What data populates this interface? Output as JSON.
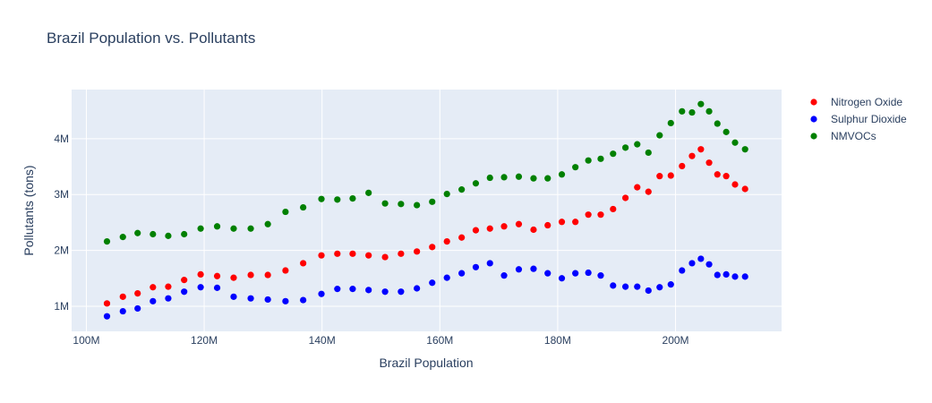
{
  "chart_data": {
    "type": "scatter",
    "title": "Brazil Population vs. Pollutants",
    "xlabel": "Brazil Population",
    "ylabel": "Pollutants (tons)",
    "xlim": [
      97500000,
      218000000
    ],
    "ylim": [
      550000,
      4880000
    ],
    "x_ticks": [
      {
        "value": 100000000,
        "label": "100M"
      },
      {
        "value": 120000000,
        "label": "120M"
      },
      {
        "value": 140000000,
        "label": "140M"
      },
      {
        "value": 160000000,
        "label": "160M"
      },
      {
        "value": 180000000,
        "label": "180M"
      },
      {
        "value": 200000000,
        "label": "200M"
      }
    ],
    "y_ticks": [
      {
        "value": 1000000,
        "label": "1M"
      },
      {
        "value": 2000000,
        "label": "2M"
      },
      {
        "value": 3000000,
        "label": "3M"
      },
      {
        "value": 4000000,
        "label": "4M"
      }
    ],
    "grid": true,
    "legend_position": "top-right",
    "x": [
      103500000,
      106200000,
      108700000,
      111300000,
      113900000,
      116600000,
      119400000,
      122200000,
      125000000,
      127900000,
      130800000,
      133800000,
      136800000,
      139900000,
      142600000,
      145200000,
      147900000,
      150700000,
      153400000,
      156100000,
      158700000,
      161200000,
      163700000,
      166100000,
      168500000,
      170900000,
      173400000,
      175900000,
      178300000,
      180700000,
      183000000,
      185200000,
      187300000,
      189400000,
      191500000,
      193500000,
      195400000,
      197300000,
      199200000,
      201100000,
      202800000,
      204300000,
      205700000,
      207100000,
      208600000,
      210100000,
      211800000
    ],
    "series": [
      {
        "name": "Nitrogen Oxide",
        "color": "#ff0000",
        "values": [
          1050000,
          1170000,
          1230000,
          1340000,
          1350000,
          1470000,
          1570000,
          1540000,
          1510000,
          1560000,
          1560000,
          1640000,
          1770000,
          1910000,
          1940000,
          1940000,
          1910000,
          1880000,
          1940000,
          1980000,
          2060000,
          2160000,
          2230000,
          2360000,
          2390000,
          2430000,
          2470000,
          2370000,
          2450000,
          2510000,
          2510000,
          2640000,
          2640000,
          2740000,
          2940000,
          3130000,
          3050000,
          3330000,
          3340000,
          3510000,
          3690000,
          3810000,
          3570000,
          3360000,
          3330000,
          3180000,
          3100000
        ]
      },
      {
        "name": "Sulphur Dioxide",
        "color": "#0000ff",
        "values": [
          820000,
          910000,
          960000,
          1090000,
          1140000,
          1260000,
          1340000,
          1330000,
          1170000,
          1140000,
          1120000,
          1090000,
          1110000,
          1220000,
          1310000,
          1310000,
          1290000,
          1260000,
          1260000,
          1320000,
          1420000,
          1510000,
          1590000,
          1700000,
          1770000,
          1550000,
          1660000,
          1670000,
          1590000,
          1500000,
          1590000,
          1600000,
          1550000,
          1370000,
          1350000,
          1350000,
          1280000,
          1340000,
          1390000,
          1640000,
          1770000,
          1850000,
          1750000,
          1560000,
          1570000,
          1530000,
          1530000
        ]
      },
      {
        "name": "NMVOCs",
        "color": "#008000",
        "values": [
          2160000,
          2240000,
          2310000,
          2290000,
          2260000,
          2290000,
          2390000,
          2430000,
          2390000,
          2390000,
          2470000,
          2690000,
          2770000,
          2920000,
          2910000,
          2930000,
          3030000,
          2840000,
          2830000,
          2810000,
          2870000,
          3010000,
          3090000,
          3200000,
          3300000,
          3310000,
          3320000,
          3290000,
          3290000,
          3360000,
          3490000,
          3610000,
          3640000,
          3730000,
          3840000,
          3900000,
          3750000,
          4060000,
          4280000,
          4490000,
          4470000,
          4620000,
          4490000,
          4270000,
          4120000,
          3930000,
          3810000
        ]
      }
    ]
  }
}
